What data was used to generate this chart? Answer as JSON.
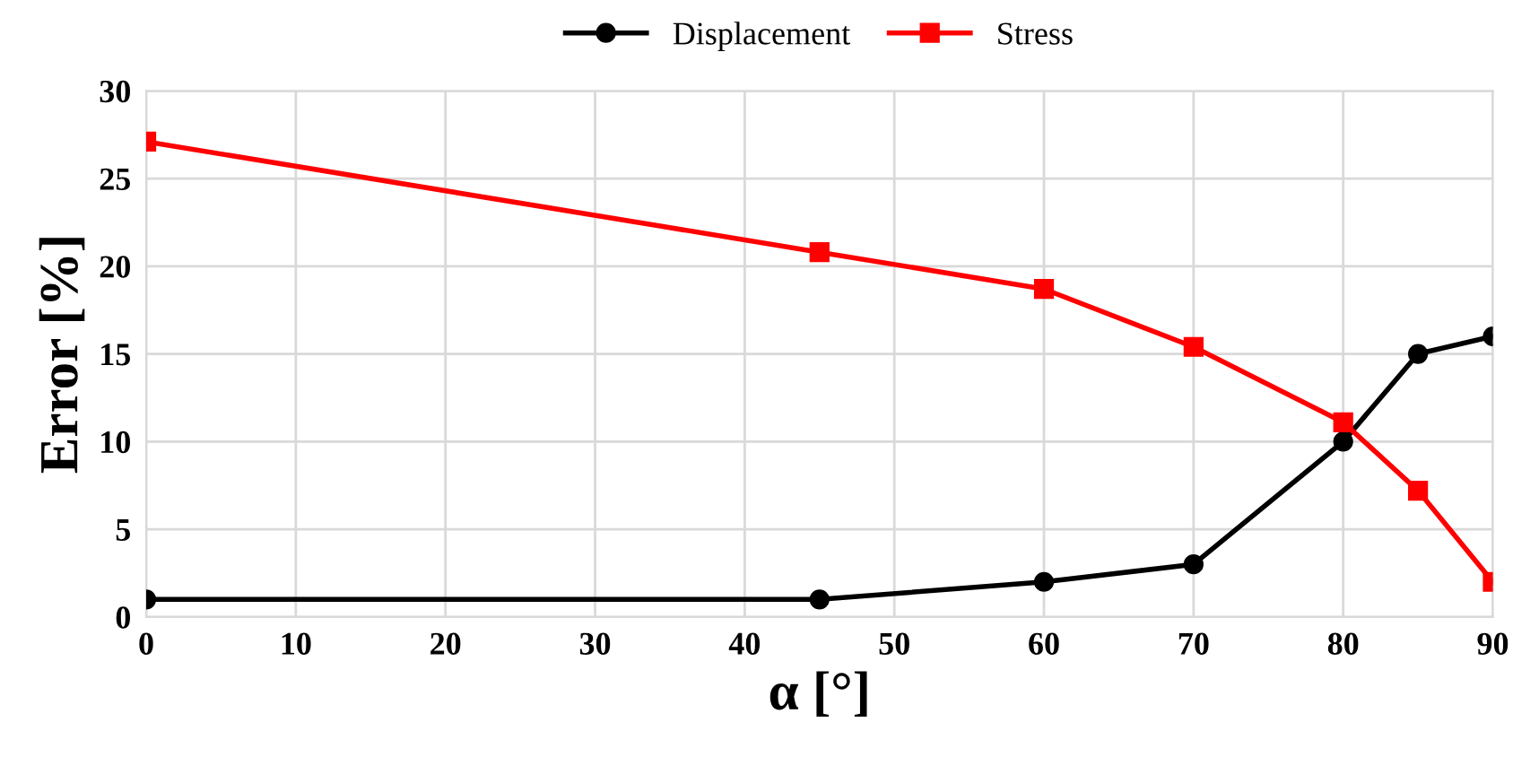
{
  "chart_data": {
    "type": "line",
    "xlabel": "α [°]",
    "ylabel": "Error [%]",
    "xlim": [
      0,
      90
    ],
    "xticks": [
      0,
      10,
      20,
      30,
      40,
      50,
      60,
      70,
      80,
      90
    ],
    "ylim": [
      0,
      30
    ],
    "yticks": [
      0,
      5,
      10,
      15,
      20,
      25,
      30
    ],
    "grid": true,
    "legend": "top",
    "line_style": "solid",
    "series": [
      {
        "name": "Displacement",
        "color": "#000000",
        "marker": "circle",
        "x": [
          0,
          45,
          60,
          70,
          80,
          85,
          90
        ],
        "values": [
          1,
          1,
          2,
          3,
          10,
          15,
          16
        ]
      },
      {
        "name": "Stress",
        "color": "#ff0000",
        "marker": "square",
        "x": [
          0,
          45,
          60,
          70,
          80,
          85,
          90
        ],
        "values": [
          27.1,
          20.8,
          18.7,
          15.4,
          11.1,
          7.2,
          2.0
        ]
      }
    ]
  }
}
